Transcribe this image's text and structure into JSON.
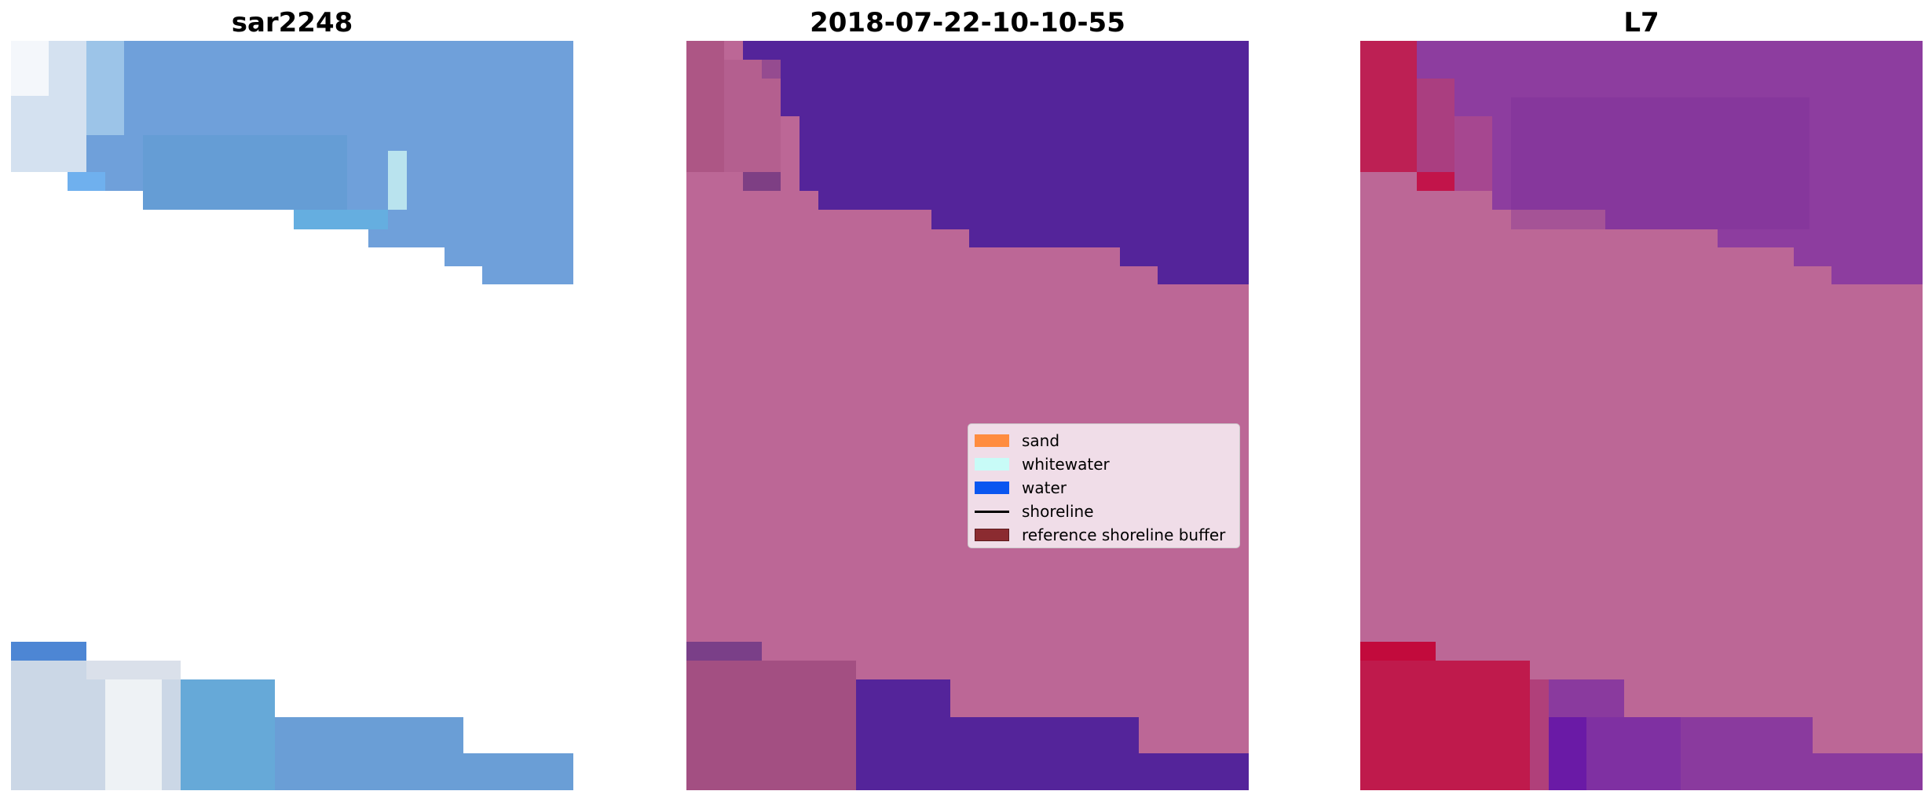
{
  "panels": [
    {
      "title": "sar2248"
    },
    {
      "title": "2018-07-22-10-10-55"
    },
    {
      "title": "L7"
    }
  ],
  "legend": {
    "placement": "center-right of middle panel",
    "items": [
      {
        "label": "sand",
        "color": "#ff8c3f"
      },
      {
        "label": "whitewater",
        "color": "#c8fbf7"
      },
      {
        "label": "water",
        "color": "#0a56f0"
      },
      {
        "label": "shoreline",
        "color": "#000000"
      },
      {
        "label": "reference shoreline buffer",
        "color": "#8b2b30"
      }
    ]
  },
  "colors": {
    "sar_water": "#6fa0da",
    "sar_water_dark": "#5a8ed6",
    "sar_white": "#e6ecf3",
    "class_land": "#bc6796",
    "class_water": "#54249a",
    "class_buffer_land": "#a6507e",
    "l7_land": "#bc6796",
    "l7_water": "#8d3d9f",
    "l7_red": "#c21d4b"
  }
}
